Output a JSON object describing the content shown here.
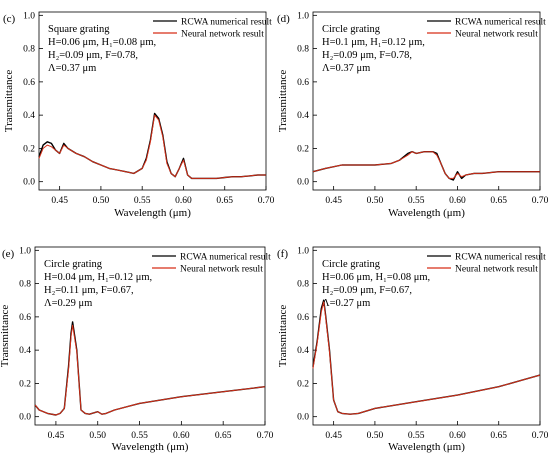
{
  "colors": {
    "rcwa": "#000000",
    "nn": "#d62f18",
    "axis": "#000000"
  },
  "chart_data": [
    {
      "panel_label": "(c)",
      "type": "line",
      "xlabel": "Wavelength (μm)",
      "ylabel": "Transmittance",
      "xlim": [
        0.425,
        0.7
      ],
      "ylim": [
        -0.05,
        1.02
      ],
      "xticks": [
        0.45,
        0.5,
        0.55,
        0.6,
        0.65,
        0.7
      ],
      "yticks": [
        0.0,
        0.2,
        0.4,
        0.6,
        0.8,
        1.0
      ],
      "legend": {
        "position": "top-right",
        "entries": [
          "RCWA numerical result",
          "Neural network result"
        ]
      },
      "params": [
        "Square grating",
        "H=0.06 μm, H₁=0.08 μm,",
        "H₂=0.09 μm, F=0.78,",
        "Λ=0.37 μm"
      ],
      "series": [
        {
          "name": "RCWA numerical result",
          "x": [
            0.425,
            0.43,
            0.435,
            0.44,
            0.445,
            0.45,
            0.455,
            0.46,
            0.47,
            0.48,
            0.49,
            0.5,
            0.51,
            0.52,
            0.53,
            0.54,
            0.55,
            0.555,
            0.56,
            0.565,
            0.57,
            0.575,
            0.58,
            0.585,
            0.59,
            0.595,
            0.6,
            0.605,
            0.61,
            0.62,
            0.63,
            0.64,
            0.65,
            0.66,
            0.67,
            0.68,
            0.69,
            0.7
          ],
          "y": [
            0.15,
            0.22,
            0.24,
            0.23,
            0.19,
            0.17,
            0.23,
            0.2,
            0.17,
            0.15,
            0.12,
            0.1,
            0.08,
            0.07,
            0.06,
            0.05,
            0.08,
            0.14,
            0.25,
            0.41,
            0.38,
            0.28,
            0.12,
            0.05,
            0.03,
            0.08,
            0.14,
            0.04,
            0.02,
            0.02,
            0.02,
            0.02,
            0.025,
            0.03,
            0.03,
            0.035,
            0.04,
            0.04
          ]
        },
        {
          "name": "Neural network result",
          "x": [
            0.425,
            0.43,
            0.435,
            0.44,
            0.445,
            0.45,
            0.455,
            0.46,
            0.47,
            0.48,
            0.49,
            0.5,
            0.51,
            0.52,
            0.53,
            0.54,
            0.55,
            0.555,
            0.56,
            0.565,
            0.57,
            0.575,
            0.58,
            0.585,
            0.59,
            0.595,
            0.6,
            0.605,
            0.61,
            0.62,
            0.63,
            0.64,
            0.65,
            0.66,
            0.67,
            0.68,
            0.69,
            0.7
          ],
          "y": [
            0.14,
            0.2,
            0.22,
            0.21,
            0.19,
            0.17,
            0.22,
            0.2,
            0.17,
            0.15,
            0.12,
            0.1,
            0.08,
            0.07,
            0.06,
            0.05,
            0.08,
            0.13,
            0.24,
            0.4,
            0.37,
            0.27,
            0.11,
            0.05,
            0.03,
            0.08,
            0.13,
            0.04,
            0.02,
            0.02,
            0.02,
            0.02,
            0.025,
            0.03,
            0.03,
            0.035,
            0.04,
            0.04
          ]
        }
      ]
    },
    {
      "panel_label": "(d)",
      "type": "line",
      "xlabel": "Wavelength (μm)",
      "ylabel": "Transmittance",
      "xlim": [
        0.425,
        0.7
      ],
      "ylim": [
        -0.05,
        1.02
      ],
      "xticks": [
        0.45,
        0.5,
        0.55,
        0.6,
        0.65,
        0.7
      ],
      "yticks": [
        0.0,
        0.2,
        0.4,
        0.6,
        0.8,
        1.0
      ],
      "legend": {
        "position": "top-right",
        "entries": [
          "RCWA numerical result",
          "Neural network result"
        ]
      },
      "params": [
        "Circle grating",
        "H=0.1 μm, H₁=0.12 μm,",
        "H₂=0.09 μm, F=0.78,",
        "Λ=0.37 μm"
      ],
      "series": [
        {
          "name": "RCWA numerical result",
          "x": [
            0.425,
            0.44,
            0.46,
            0.48,
            0.5,
            0.52,
            0.53,
            0.54,
            0.545,
            0.55,
            0.56,
            0.57,
            0.575,
            0.58,
            0.585,
            0.59,
            0.595,
            0.6,
            0.605,
            0.61,
            0.62,
            0.63,
            0.65,
            0.67,
            0.7
          ],
          "y": [
            0.06,
            0.08,
            0.1,
            0.1,
            0.1,
            0.11,
            0.13,
            0.17,
            0.18,
            0.17,
            0.18,
            0.18,
            0.17,
            0.11,
            0.05,
            0.02,
            0.01,
            0.06,
            0.02,
            0.04,
            0.05,
            0.05,
            0.06,
            0.06,
            0.06
          ]
        },
        {
          "name": "Neural network result",
          "x": [
            0.425,
            0.44,
            0.46,
            0.48,
            0.5,
            0.52,
            0.53,
            0.54,
            0.545,
            0.55,
            0.56,
            0.57,
            0.575,
            0.58,
            0.585,
            0.59,
            0.595,
            0.6,
            0.605,
            0.61,
            0.62,
            0.63,
            0.65,
            0.67,
            0.7
          ],
          "y": [
            0.06,
            0.08,
            0.1,
            0.1,
            0.1,
            0.11,
            0.13,
            0.16,
            0.18,
            0.17,
            0.18,
            0.18,
            0.16,
            0.11,
            0.05,
            0.02,
            0.02,
            0.05,
            0.03,
            0.04,
            0.05,
            0.05,
            0.06,
            0.06,
            0.06
          ]
        }
      ]
    },
    {
      "panel_label": "(e)",
      "type": "line",
      "xlabel": "Wavelength (μm)",
      "ylabel": "Transmittance",
      "xlim": [
        0.425,
        0.7
      ],
      "ylim": [
        -0.05,
        1.02
      ],
      "xticks": [
        0.45,
        0.5,
        0.55,
        0.6,
        0.65,
        0.7
      ],
      "yticks": [
        0.0,
        0.2,
        0.4,
        0.6,
        0.8,
        1.0
      ],
      "legend": {
        "position": "top-right",
        "entries": [
          "RCWA numerical result",
          "Neural network result"
        ]
      },
      "params": [
        "Circle grating",
        "H=0.04 μm, H₁=0.12 μm,",
        "H₂=0.11 μm, F=0.67,",
        "Λ=0.29 μm"
      ],
      "series": [
        {
          "name": "RCWA numerical result",
          "x": [
            0.425,
            0.43,
            0.44,
            0.45,
            0.455,
            0.46,
            0.465,
            0.468,
            0.47,
            0.475,
            0.48,
            0.485,
            0.49,
            0.5,
            0.505,
            0.51,
            0.52,
            0.55,
            0.6,
            0.65,
            0.7
          ],
          "y": [
            0.07,
            0.04,
            0.02,
            0.01,
            0.02,
            0.05,
            0.3,
            0.5,
            0.57,
            0.4,
            0.04,
            0.02,
            0.015,
            0.03,
            0.015,
            0.02,
            0.04,
            0.08,
            0.12,
            0.15,
            0.18
          ]
        },
        {
          "name": "Neural network result",
          "x": [
            0.425,
            0.43,
            0.44,
            0.45,
            0.455,
            0.46,
            0.465,
            0.468,
            0.47,
            0.475,
            0.48,
            0.485,
            0.49,
            0.5,
            0.505,
            0.51,
            0.52,
            0.55,
            0.6,
            0.65,
            0.7
          ],
          "y": [
            0.07,
            0.04,
            0.02,
            0.01,
            0.02,
            0.05,
            0.28,
            0.48,
            0.55,
            0.39,
            0.04,
            0.02,
            0.015,
            0.03,
            0.015,
            0.02,
            0.04,
            0.08,
            0.12,
            0.15,
            0.18
          ]
        }
      ]
    },
    {
      "panel_label": "(f)",
      "type": "line",
      "xlabel": "Wavelength (μm)",
      "ylabel": "Transmittance",
      "xlim": [
        0.425,
        0.7
      ],
      "ylim": [
        -0.05,
        1.02
      ],
      "xticks": [
        0.45,
        0.5,
        0.55,
        0.6,
        0.65,
        0.7
      ],
      "yticks": [
        0.0,
        0.2,
        0.4,
        0.6,
        0.8,
        1.0
      ],
      "legend": {
        "position": "top-right",
        "entries": [
          "RCWA numerical result",
          "Neural network result"
        ]
      },
      "params": [
        "Circle grating",
        "H=0.06 μm, H₁=0.08 μm,",
        "H₂=0.09 μm, F=0.67,",
        "Λ=0.27 μm"
      ],
      "series": [
        {
          "name": "RCWA numerical result",
          "x": [
            0.425,
            0.43,
            0.435,
            0.438,
            0.44,
            0.445,
            0.45,
            0.455,
            0.46,
            0.47,
            0.48,
            0.5,
            0.55,
            0.6,
            0.65,
            0.7
          ],
          "y": [
            0.3,
            0.45,
            0.65,
            0.7,
            0.62,
            0.4,
            0.1,
            0.03,
            0.02,
            0.015,
            0.02,
            0.05,
            0.09,
            0.13,
            0.18,
            0.25
          ]
        },
        {
          "name": "Neural network result",
          "x": [
            0.425,
            0.43,
            0.435,
            0.438,
            0.44,
            0.445,
            0.45,
            0.455,
            0.46,
            0.47,
            0.48,
            0.5,
            0.55,
            0.6,
            0.65,
            0.7
          ],
          "y": [
            0.29,
            0.44,
            0.63,
            0.69,
            0.61,
            0.39,
            0.1,
            0.03,
            0.02,
            0.015,
            0.02,
            0.05,
            0.09,
            0.13,
            0.18,
            0.25
          ]
        }
      ]
    }
  ]
}
